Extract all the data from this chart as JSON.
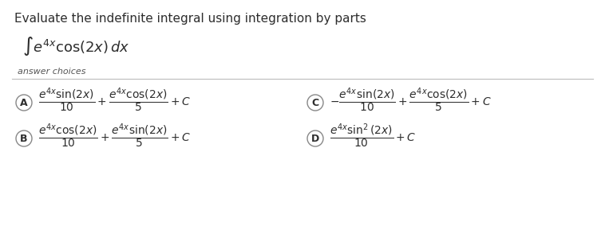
{
  "title": "Evaluate the indefinite integral using integration by parts",
  "integral_expr": "$\\int e^{4x} \\cos(2x)\\, dx$",
  "answer_choices_label": "answer choices",
  "bg_color": "#ffffff",
  "text_color": "#2d2d2d",
  "label_color": "#555555",
  "answer_label_fontsize": 11,
  "choices": [
    {
      "letter": "A",
      "latex": "$\\dfrac{e^{4x} \\sin(2x)}{10} + \\dfrac{e^{4x} \\cos(2x)}{5} + C$"
    },
    {
      "letter": "B",
      "latex": "$\\dfrac{e^{4x} \\cos(2x)}{10} + \\dfrac{e^{4x} \\sin(2x)}{5} + C$"
    },
    {
      "letter": "C",
      "latex": "$-\\dfrac{e^{4x} \\sin(2x)}{10} + \\dfrac{e^{4x} \\cos(2x)}{5} + C$"
    },
    {
      "letter": "D",
      "latex": "$\\dfrac{e^{4x} \\sin^2(2x)}{10} + C$"
    }
  ]
}
